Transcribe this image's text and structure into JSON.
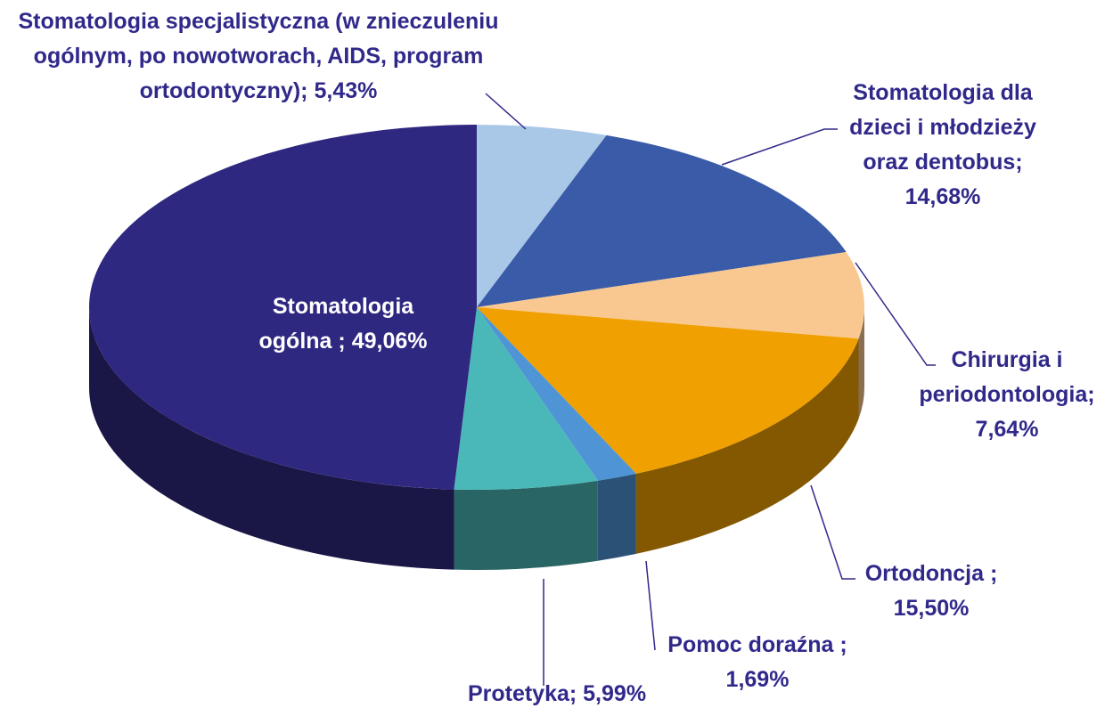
{
  "chart_data": {
    "type": "pie3d",
    "categories": [
      "Stomatologia specjalistyczna (w znieczuleniu ogólnym, po nowotworach, AIDS, program ortodontyczny);",
      "Stomatologia dla dzieci i młodzieży oraz dentobus;",
      "Chirurgia i periodontologia;",
      "Ortodoncja ;",
      "Pomoc doraźna ;",
      "Protetyka;",
      "Stomatologia ogólna ;"
    ],
    "values": [
      5.43,
      14.68,
      7.64,
      15.5,
      1.69,
      5.99,
      49.06
    ],
    "value_labels": [
      "5,43%",
      "14,68%",
      "7,64%",
      "15,50%",
      "1,69%",
      "5,99%",
      "49,06%"
    ],
    "colors": [
      "#a9c8e8",
      "#3a5ba8",
      "#f9c891",
      "#f0a000",
      "#4f95d6",
      "#4ab8b8",
      "#2f2880"
    ]
  }
}
